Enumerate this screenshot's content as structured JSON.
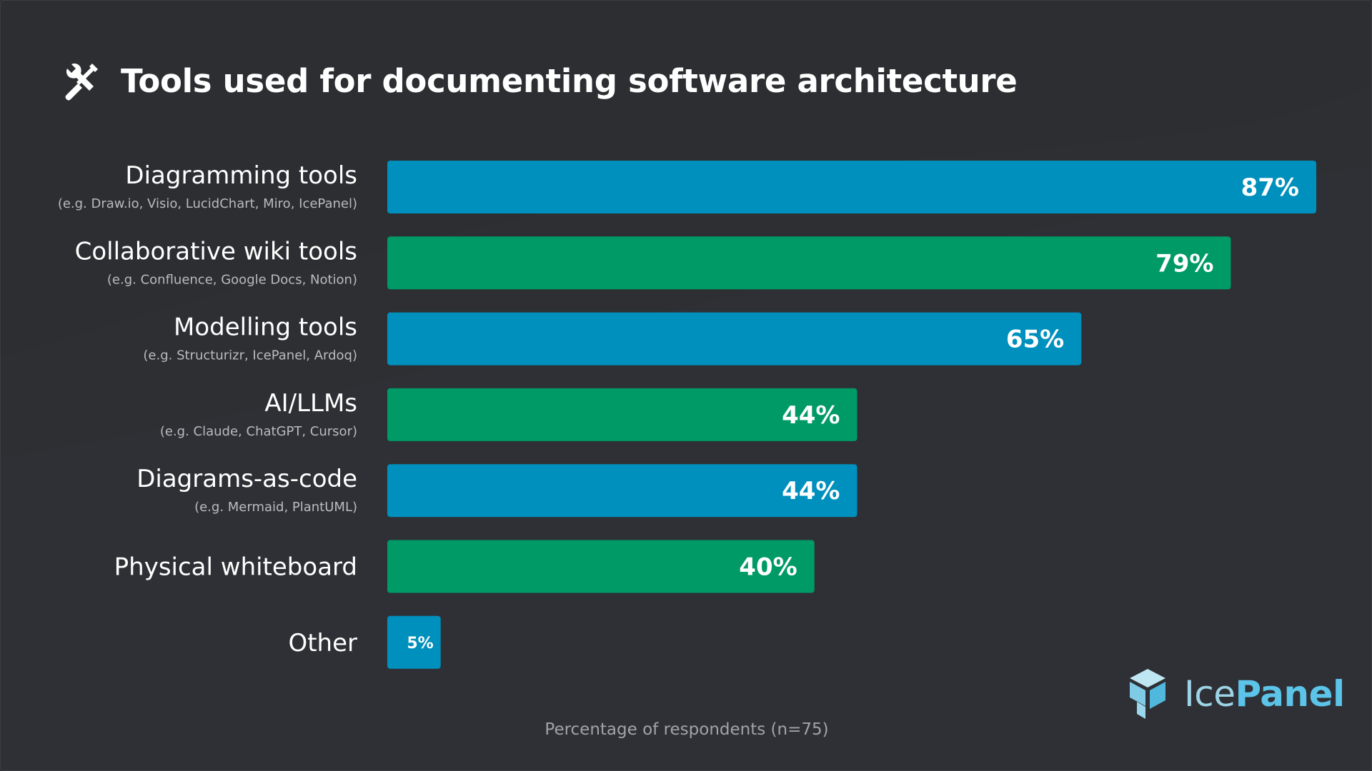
{
  "header": {
    "title": "Tools used for documenting software architecture",
    "icon": "tools-icon"
  },
  "footnote": "Percentage of respondents (n=75)",
  "brand": {
    "name_part1": "Ice",
    "name_part2": "Panel"
  },
  "colors": {
    "background": "#2c2e31",
    "bar_blue": "#0090bd",
    "bar_green": "#009a66",
    "label_text": "#ffffff",
    "sublabel_text": "#b8bbbf"
  },
  "chart_data": {
    "type": "bar",
    "orientation": "horizontal",
    "title": "Tools used for documenting software architecture",
    "xlabel": "Percentage of respondents (n=75)",
    "ylabel": "",
    "xlim": [
      0,
      100
    ],
    "grid": false,
    "legend": "none",
    "categories": [
      "Diagramming tools",
      "Collaborative wiki tools",
      "Modelling tools",
      "AI/LLMs",
      "Diagrams-as-code",
      "Physical whiteboard",
      "Other"
    ],
    "sublabels": [
      "(e.g. Draw.io, Visio, LucidChart, Miro, IcePanel)",
      "(e.g. Confluence, Google Docs, Notion)",
      "(e.g. Structurizr, IcePanel, Ardoq)",
      "(e.g. Claude, ChatGPT, Cursor)",
      "(e.g. Mermaid, PlantUML)",
      "",
      ""
    ],
    "values": [
      87,
      79,
      65,
      44,
      44,
      40,
      5
    ],
    "value_labels": [
      "87%",
      "79%",
      "65%",
      "44%",
      "44%",
      "40%",
      "5%"
    ],
    "bar_colors": [
      "#0090bd",
      "#009a66",
      "#0090bd",
      "#009a66",
      "#0090bd",
      "#009a66",
      "#0090bd"
    ]
  }
}
